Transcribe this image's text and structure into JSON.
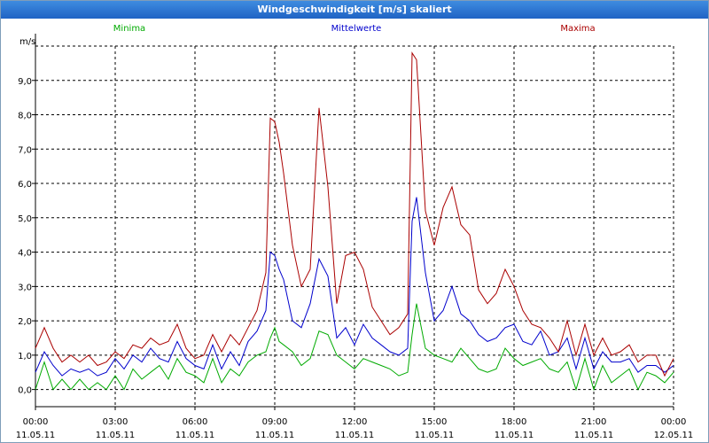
{
  "window": {
    "title": "Windgeschwindigkeit [m/s] skaliert"
  },
  "chart_data": {
    "type": "line",
    "title": "Windgeschwindigkeit [m/s] skaliert",
    "ylabel": "m/s",
    "ylim": [
      -0.5,
      10.0
    ],
    "y_ticks": [
      0,
      1,
      2,
      3,
      4,
      5,
      6,
      7,
      8,
      9
    ],
    "y_tick_labels": [
      "0,0",
      "1,0",
      "2,0",
      "3,0",
      "4,0",
      "5,0",
      "6,0",
      "7,0",
      "8,0",
      "9,0"
    ],
    "x_ticks": [
      "11.05.11 00:00",
      "11.05.11 03:00",
      "11.05.11 06:00",
      "11.05.11 09:00",
      "11.05.11 12:00",
      "11.05.11 15:00",
      "11.05.11 18:00",
      "11.05.11 21:00",
      "12.05.11 00:00"
    ],
    "x_tick_time": [
      "00:00",
      "03:00",
      "06:00",
      "09:00",
      "12:00",
      "15:00",
      "18:00",
      "21:00",
      "00:00"
    ],
    "x_tick_date": [
      "11.05.11",
      "11.05.11",
      "11.05.11",
      "11.05.11",
      "11.05.11",
      "11.05.11",
      "11.05.11",
      "11.05.11",
      "12.05.11"
    ],
    "grid": true,
    "legend_position": "top",
    "x": [
      "00:00",
      "00:20",
      "00:40",
      "01:00",
      "01:20",
      "01:40",
      "02:00",
      "02:20",
      "02:40",
      "03:00",
      "03:20",
      "03:40",
      "04:00",
      "04:20",
      "04:40",
      "05:00",
      "05:20",
      "05:40",
      "06:00",
      "06:20",
      "06:40",
      "07:00",
      "07:20",
      "07:40",
      "08:00",
      "08:20",
      "08:40",
      "08:50",
      "09:00",
      "09:10",
      "09:20",
      "09:40",
      "10:00",
      "10:20",
      "10:40",
      "11:00",
      "11:20",
      "11:40",
      "12:00",
      "12:20",
      "12:40",
      "13:00",
      "13:20",
      "13:40",
      "14:00",
      "14:10",
      "14:20",
      "14:40",
      "15:00",
      "15:20",
      "15:40",
      "16:00",
      "16:20",
      "16:40",
      "17:00",
      "17:20",
      "17:40",
      "18:00",
      "18:20",
      "18:40",
      "19:00",
      "19:20",
      "19:40",
      "20:00",
      "20:20",
      "20:40",
      "21:00",
      "21:20",
      "21:40",
      "22:00",
      "22:20",
      "22:40",
      "23:00",
      "23:20",
      "23:40",
      "24:00"
    ],
    "series": [
      {
        "name": "Minima",
        "color": "#00aa00",
        "values": [
          0.0,
          0.8,
          0.0,
          0.3,
          0.0,
          0.3,
          0.0,
          0.2,
          0.0,
          0.4,
          0.0,
          0.6,
          0.3,
          0.5,
          0.7,
          0.3,
          0.9,
          0.5,
          0.4,
          0.2,
          0.9,
          0.2,
          0.6,
          0.4,
          0.8,
          1.0,
          1.1,
          1.5,
          1.8,
          1.4,
          1.3,
          1.1,
          0.7,
          0.9,
          1.7,
          1.6,
          1.0,
          0.8,
          0.6,
          0.9,
          0.8,
          0.7,
          0.6,
          0.4,
          0.5,
          1.6,
          2.5,
          1.2,
          1.0,
          0.9,
          0.8,
          1.2,
          0.9,
          0.6,
          0.5,
          0.6,
          1.2,
          0.9,
          0.7,
          0.8,
          0.9,
          0.6,
          0.5,
          0.8,
          0.0,
          0.9,
          0.0,
          0.7,
          0.2,
          0.4,
          0.6,
          0.0,
          0.5,
          0.4,
          0.2,
          0.5
        ]
      },
      {
        "name": "Mittelwerte",
        "color": "#0000cc",
        "values": [
          0.5,
          1.1,
          0.7,
          0.4,
          0.6,
          0.5,
          0.6,
          0.4,
          0.5,
          0.9,
          0.6,
          1.0,
          0.8,
          1.2,
          0.9,
          0.8,
          1.4,
          0.9,
          0.7,
          0.6,
          1.3,
          0.6,
          1.1,
          0.7,
          1.4,
          1.7,
          2.3,
          4.0,
          3.9,
          3.5,
          3.2,
          2.0,
          1.8,
          2.5,
          3.8,
          3.3,
          1.5,
          1.8,
          1.3,
          1.9,
          1.5,
          1.3,
          1.1,
          1.0,
          1.2,
          4.9,
          5.6,
          3.4,
          2.0,
          2.3,
          3.0,
          2.2,
          2.0,
          1.6,
          1.4,
          1.5,
          1.8,
          1.9,
          1.4,
          1.3,
          1.7,
          1.0,
          1.1,
          1.5,
          0.6,
          1.5,
          0.6,
          1.1,
          0.8,
          0.8,
          0.9,
          0.5,
          0.7,
          0.7,
          0.5,
          0.7
        ]
      },
      {
        "name": "Maxima",
        "color": "#aa0000",
        "values": [
          1.2,
          1.8,
          1.2,
          0.8,
          1.0,
          0.8,
          1.0,
          0.7,
          0.8,
          1.1,
          0.9,
          1.3,
          1.2,
          1.5,
          1.3,
          1.4,
          1.9,
          1.2,
          0.9,
          1.0,
          1.6,
          1.1,
          1.6,
          1.3,
          1.8,
          2.3,
          3.4,
          7.9,
          7.8,
          7.2,
          6.3,
          4.2,
          3.0,
          3.5,
          8.2,
          5.9,
          2.5,
          3.9,
          4.0,
          3.5,
          2.4,
          2.0,
          1.6,
          1.8,
          2.2,
          9.8,
          9.6,
          5.2,
          4.2,
          5.3,
          5.9,
          4.8,
          4.5,
          2.9,
          2.5,
          2.8,
          3.5,
          3.0,
          2.3,
          1.9,
          1.8,
          1.5,
          1.1,
          2.0,
          1.0,
          1.9,
          1.0,
          1.5,
          1.0,
          1.1,
          1.3,
          0.8,
          1.0,
          1.0,
          0.4,
          0.9
        ]
      }
    ]
  }
}
